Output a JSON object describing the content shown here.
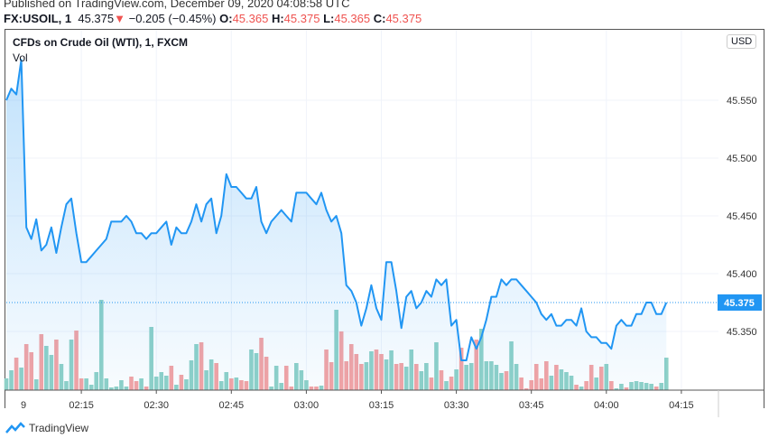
{
  "header": {
    "published": "Published on TradingView.com, December 09, 2020 04:08:58 UTC",
    "symbol": "FX:USOIL, 1",
    "last": "45.375",
    "change": "−0.205 (−0.45%)",
    "o_label": "O:",
    "o": "45.365",
    "h_label": "H:",
    "h": "45.375",
    "l_label": "L:",
    "l": "45.365",
    "c_label": "C:",
    "c": "45.375"
  },
  "chart_title": "CFDs on Crude Oil (WTI), 1, FXCM",
  "vol_label": "Vol",
  "currency": "USD",
  "footer": {
    "brand": "TradingView"
  },
  "colors": {
    "line": "#2196f3",
    "up": "#8fd1c7",
    "down": "#f5a3a3",
    "down_text": "#ef5350"
  },
  "chart_data": {
    "type": "area",
    "title": "CFDs on Crude Oil (WTI), 1, FXCM",
    "x_start": "01:58",
    "x_step_minutes": 1,
    "ylim": [
      45.305,
      45.6
    ],
    "yticks": [
      "45.550",
      "45.500",
      "45.450",
      "45.400",
      "45.350"
    ],
    "ytick_values": [
      45.55,
      45.5,
      45.45,
      45.4,
      45.35
    ],
    "xticks": [
      "9",
      "02:15",
      "02:30",
      "02:45",
      "03:00",
      "03:15",
      "03:30",
      "03:45",
      "04:00",
      "04:15"
    ],
    "xtick_minutes": [
      -2,
      15,
      30,
      45,
      60,
      75,
      90,
      105,
      120,
      135
    ],
    "last_price_label": "45.375",
    "last_price": 45.375,
    "prices": [
      45.55,
      45.56,
      45.555,
      45.585,
      45.44,
      45.43,
      45.447,
      45.42,
      45.425,
      45.44,
      45.418,
      45.44,
      45.46,
      45.465,
      45.435,
      45.41,
      45.41,
      45.415,
      45.42,
      45.425,
      45.43,
      45.445,
      45.445,
      45.445,
      45.45,
      45.445,
      45.435,
      45.435,
      45.43,
      45.435,
      45.435,
      45.44,
      45.445,
      45.425,
      45.44,
      45.435,
      45.435,
      45.445,
      45.46,
      45.445,
      45.46,
      45.465,
      45.435,
      45.45,
      45.486,
      45.475,
      45.475,
      45.47,
      45.465,
      45.465,
      45.475,
      45.445,
      45.435,
      45.445,
      45.45,
      45.455,
      45.45,
      45.445,
      45.47,
      45.47,
      45.47,
      45.465,
      45.46,
      45.47,
      45.455,
      45.445,
      45.45,
      45.435,
      45.39,
      45.385,
      45.375,
      45.355,
      45.37,
      45.39,
      45.37,
      45.36,
      45.41,
      45.41,
      45.385,
      45.353,
      45.38,
      45.385,
      45.37,
      45.375,
      45.385,
      45.38,
      45.395,
      45.39,
      45.395,
      45.355,
      45.36,
      45.325,
      45.325,
      45.345,
      45.335,
      45.345,
      45.36,
      45.38,
      45.38,
      45.395,
      45.39,
      45.395,
      45.395,
      45.39,
      45.385,
      45.38,
      45.375,
      45.365,
      45.36,
      45.365,
      45.355,
      45.355,
      45.36,
      45.36,
      45.355,
      45.37,
      45.35,
      45.345,
      45.345,
      45.34,
      45.34,
      45.335,
      45.355,
      45.36,
      45.355,
      45.355,
      45.365,
      45.365,
      45.375,
      45.375,
      45.365,
      45.365,
      45.375
    ],
    "volumes": [
      13,
      22,
      36,
      25,
      51,
      42,
      12,
      62,
      49,
      39,
      56,
      29,
      10,
      56,
      66,
      13,
      13,
      6,
      20,
      100,
      13,
      3,
      4,
      11,
      4,
      15,
      10,
      13,
      4,
      70,
      15,
      20,
      16,
      27,
      6,
      17,
      12,
      33,
      51,
      53,
      22,
      34,
      30,
      10,
      20,
      13,
      14,
      11,
      10,
      45,
      41,
      58,
      37,
      4,
      27,
      8,
      27,
      4,
      30,
      22,
      11,
      4,
      4,
      5,
      45,
      31,
      89,
      65,
      32,
      51,
      40,
      29,
      31,
      43,
      45,
      40,
      34,
      44,
      29,
      30,
      26,
      45,
      29,
      21,
      30,
      14,
      53,
      22,
      10,
      15,
      23,
      47,
      28,
      30,
      56,
      68,
      32,
      32,
      28,
      19,
      21,
      54,
      29,
      14,
      2,
      11,
      29,
      13,
      32,
      16,
      28,
      23,
      20,
      16,
      6,
      4,
      10,
      28,
      14,
      26,
      29,
      10,
      2,
      7,
      3,
      9,
      10,
      9,
      8,
      7,
      4,
      8,
      36
    ]
  }
}
